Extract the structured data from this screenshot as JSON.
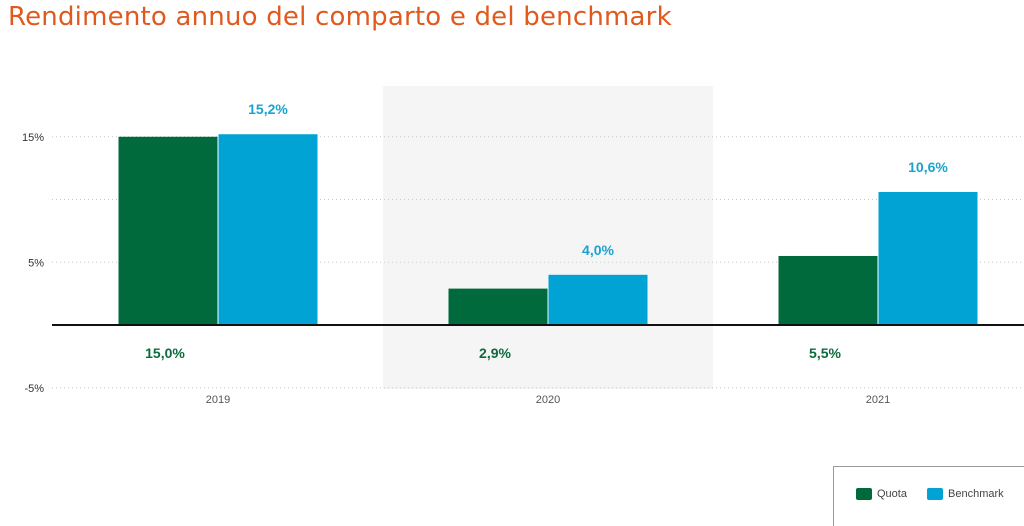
{
  "chart_data": {
    "type": "bar",
    "title": "Rendimento annuo del comparto e del benchmark",
    "categories": [
      "2019",
      "2020",
      "2021"
    ],
    "series": [
      {
        "name": "Quota",
        "color": "#006a3d",
        "label_color": "#0b6b3f",
        "values": [
          15.0,
          2.9,
          5.5
        ],
        "labels": [
          "15,0%",
          "2,9%",
          "5,5%"
        ]
      },
      {
        "name": "Benchmark",
        "color": "#00a3d4",
        "label_color": "#1aa3d0",
        "values": [
          15.2,
          4.0,
          10.6
        ],
        "labels": [
          "15,2%",
          "4,0%",
          "10,6%"
        ]
      }
    ],
    "yticks": [
      {
        "value": 15,
        "label": "15%"
      },
      {
        "value": 5,
        "label": "5%"
      },
      {
        "value": -5,
        "label": "-5%"
      }
    ],
    "gridlines": [
      15,
      10,
      5,
      0,
      -5
    ],
    "ylim": [
      -5,
      19
    ],
    "highlight_category": "2020",
    "highlight_color": "#f5f5f5",
    "grid": true,
    "legend_position": "bottom-right"
  }
}
